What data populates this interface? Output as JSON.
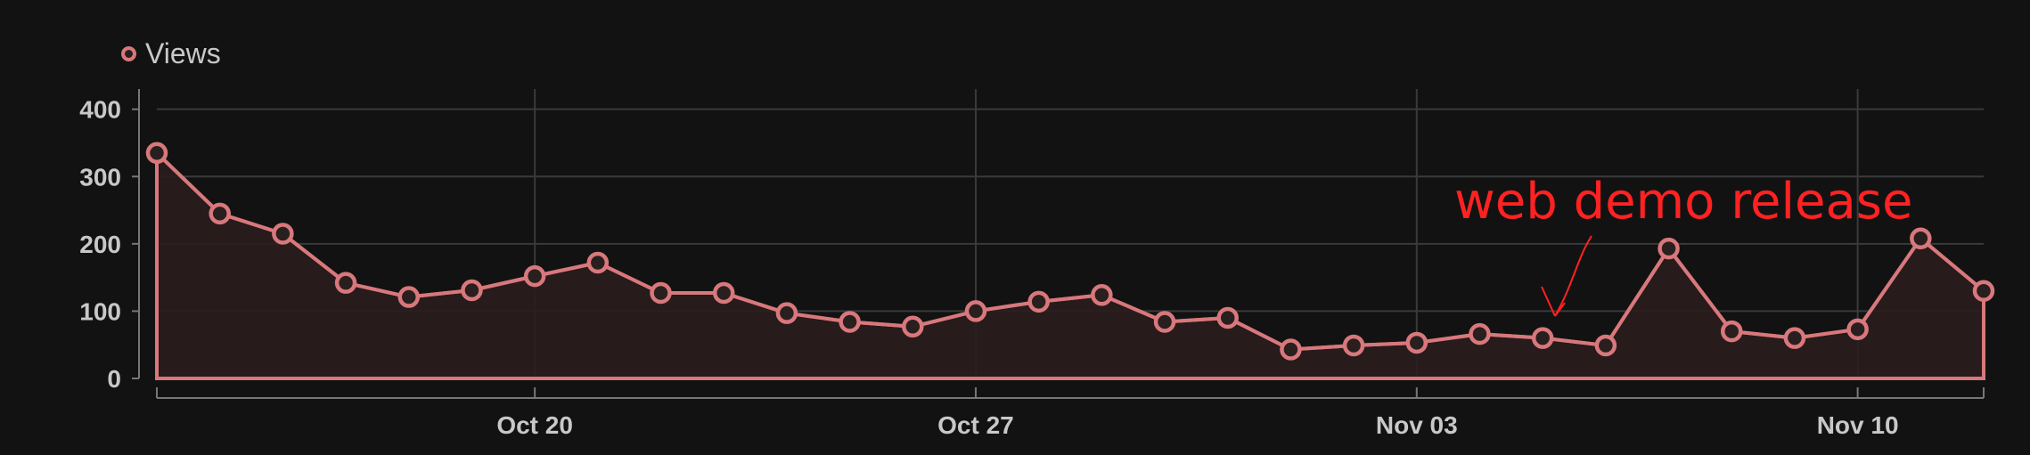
{
  "legend": {
    "label": "Views"
  },
  "annotation": {
    "text": "web demo release",
    "color": "#ff2222"
  },
  "colors": {
    "series": "#d8787c",
    "fill": "#2a1d1d",
    "grid": "#3a3a3a",
    "axis": "#777777",
    "tick_text": "#c8c8c8",
    "background": "#121212"
  },
  "chart_data": {
    "type": "area",
    "title": "",
    "xlabel": "",
    "ylabel": "",
    "ylim": [
      0,
      430
    ],
    "yticks": [
      0,
      100,
      200,
      300,
      400
    ],
    "grid": true,
    "legend_position": "top-left",
    "x_tick_labels": [
      "Oct 20",
      "Oct 27",
      "Nov 03",
      "Nov 10"
    ],
    "x_start": "2024-10-14",
    "x_tick_dates": [
      "2024-10-20",
      "2024-10-27",
      "2024-11-03",
      "2024-11-10"
    ],
    "series": [
      {
        "name": "Views",
        "x": [
          "2024-10-14",
          "2024-10-15",
          "2024-10-16",
          "2024-10-17",
          "2024-10-18",
          "2024-10-19",
          "2024-10-20",
          "2024-10-21",
          "2024-10-22",
          "2024-10-23",
          "2024-10-24",
          "2024-10-25",
          "2024-10-26",
          "2024-10-27",
          "2024-10-28",
          "2024-10-29",
          "2024-10-30",
          "2024-10-31",
          "2024-11-01",
          "2024-11-02",
          "2024-11-03",
          "2024-11-04",
          "2024-11-05",
          "2024-11-06",
          "2024-11-07",
          "2024-11-08",
          "2024-11-09",
          "2024-11-10",
          "2024-11-11",
          "2024-11-12"
        ],
        "values": [
          335,
          245,
          215,
          142,
          121,
          131,
          152,
          172,
          127,
          127,
          97,
          84,
          77,
          100,
          114,
          124,
          84,
          90,
          43,
          49,
          53,
          66,
          60,
          49,
          193,
          70,
          60,
          73,
          208,
          130
        ]
      }
    ]
  }
}
